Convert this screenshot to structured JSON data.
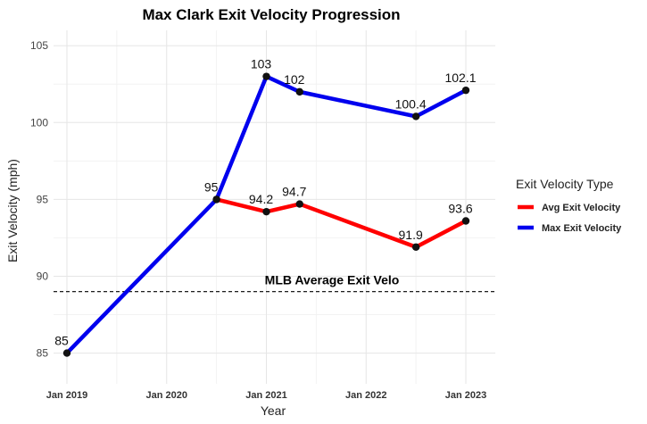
{
  "chart_data": {
    "type": "line",
    "title": "Max Clark Exit Velocity Progression",
    "xlabel": "Year",
    "ylabel": "Exit Velocity (mph)",
    "ylim": [
      83,
      106
    ],
    "x_ticks": [
      "Jan 2019",
      "Jan 2020",
      "Jan 2021",
      "Jan 2022",
      "Jan 2023"
    ],
    "y_ticks": [
      85,
      90,
      95,
      100,
      105
    ],
    "grid": true,
    "legend": {
      "title": "Exit Velocity Type",
      "placement": "right"
    },
    "reference_line": {
      "label": "MLB Average Exit Velo",
      "y": 89
    },
    "series": [
      {
        "name": "Avg Exit Velocity",
        "color": "#ff0000",
        "points": [
          {
            "x": "2020-07",
            "y": 95,
            "label": ""
          },
          {
            "x": "2021-01",
            "y": 94.2,
            "label": "94.2"
          },
          {
            "x": "2021-05",
            "y": 94.7,
            "label": "94.7"
          },
          {
            "x": "2022-07",
            "y": 91.9,
            "label": "91.9"
          },
          {
            "x": "2023-01",
            "y": 93.6,
            "label": "93.6"
          }
        ]
      },
      {
        "name": "Max Exit Velocity",
        "color": "#0000ee",
        "points": [
          {
            "x": "2019-01",
            "y": 85,
            "label": "85"
          },
          {
            "x": "2020-07",
            "y": 95,
            "label": "95"
          },
          {
            "x": "2021-01",
            "y": 103,
            "label": "103"
          },
          {
            "x": "2021-05",
            "y": 102,
            "label": "102"
          },
          {
            "x": "2022-07",
            "y": 100.4,
            "label": "100.4"
          },
          {
            "x": "2023-01",
            "y": 102.1,
            "label": "102.1"
          }
        ]
      }
    ]
  }
}
